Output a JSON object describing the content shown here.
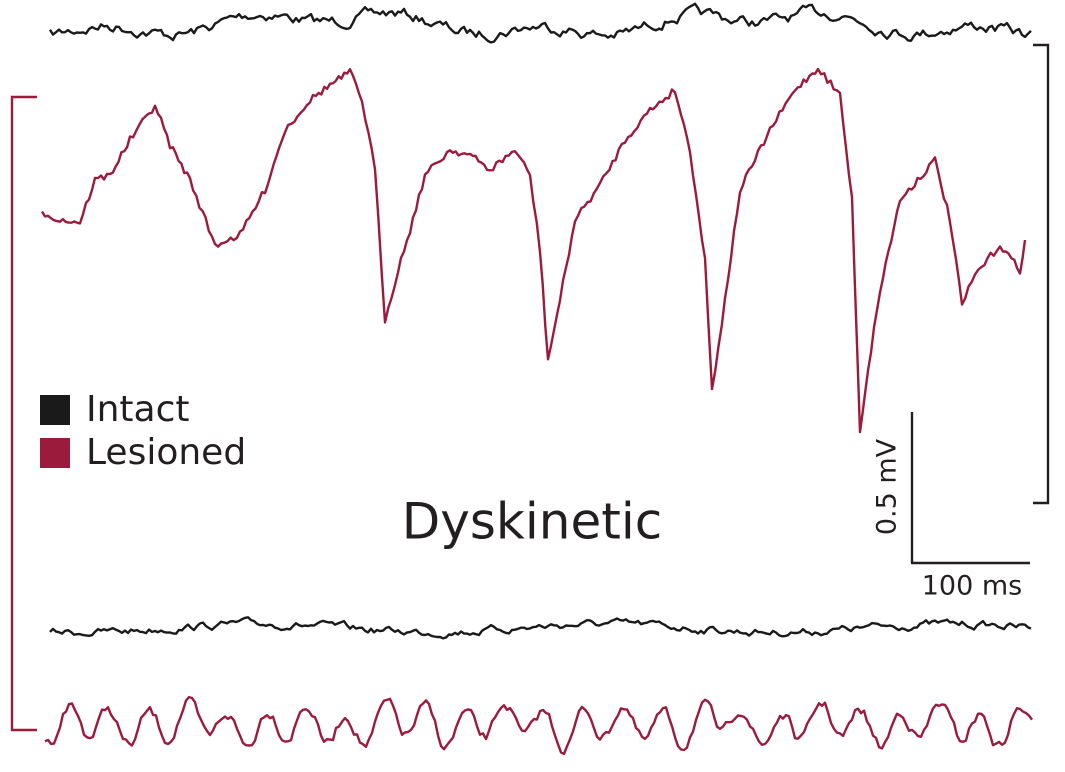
{
  "legend": [
    {
      "label": "Intact",
      "color": "#1a1a1a"
    },
    {
      "label": "Lesioned",
      "color": "#9b1b3c"
    }
  ],
  "title": "Dyskinetic",
  "scale_bar": {
    "vertical": "0.5 mV",
    "horizontal": "100 ms"
  }
}
